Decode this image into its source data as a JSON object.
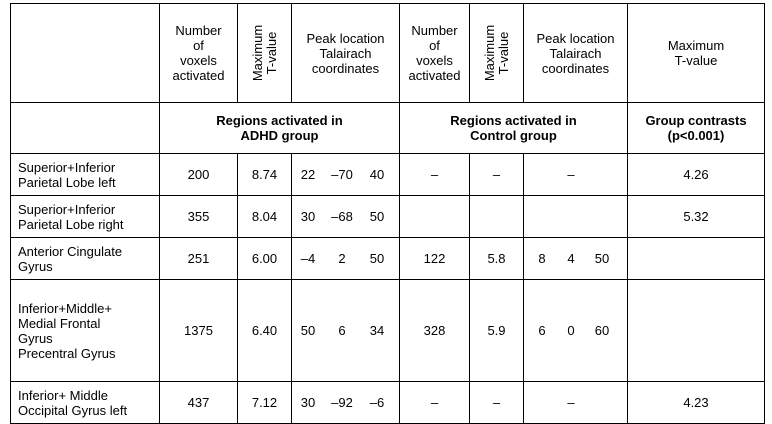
{
  "headers": {
    "num_voxels": "Number\nof\nvoxels\nactivated",
    "max_t": "Maximum\nT-value",
    "peak": "Peak location\nTalairach\ncoordinates",
    "num_voxels_2": "Number\nof\nvoxels\nactivated",
    "max_t_2": "Maximum\nT-value",
    "peak_2": "Peak location\nTalairach\ncoordinates",
    "max_t_contrast": "Maximum\nT-value"
  },
  "groups": {
    "adhd": "Regions activated in\nADHD group",
    "control": "Regions activated in\nControl group",
    "contrast": "Group contrasts\n(p<0.001)"
  },
  "rows": [
    {
      "region": "Superior+Inferior\nParietal Lobe left",
      "adhd_voxels": "200",
      "adhd_t": "8.74",
      "adhd_x": "22",
      "adhd_y": "–70",
      "adhd_z": "40",
      "ctrl_voxels": "–",
      "ctrl_t": "–",
      "ctrl_x": "",
      "ctrl_y": "–",
      "ctrl_z": "",
      "contrast_t": "4.26"
    },
    {
      "region": "Superior+Inferior\nParietal Lobe right",
      "adhd_voxels": "355",
      "adhd_t": "8.04",
      "adhd_x": "30",
      "adhd_y": "–68",
      "adhd_z": "50",
      "ctrl_voxels": "",
      "ctrl_t": "",
      "ctrl_x": "",
      "ctrl_y": "",
      "ctrl_z": "",
      "contrast_t": "5.32"
    },
    {
      "region": "Anterior Cingulate\nGyrus",
      "adhd_voxels": "251",
      "adhd_t": "6.00",
      "adhd_x": "–4",
      "adhd_y": "2",
      "adhd_z": "50",
      "ctrl_voxels": "122",
      "ctrl_t": "5.8",
      "ctrl_x": "8",
      "ctrl_y": "4",
      "ctrl_z": "50",
      "contrast_t": ""
    },
    {
      "region": "Inferior+Middle+\nMedial Frontal\nGyrus\nPrecentral Gyrus",
      "adhd_voxels": "1375",
      "adhd_t": "6.40",
      "adhd_x": "50",
      "adhd_y": "6",
      "adhd_z": "34",
      "ctrl_voxels": "328",
      "ctrl_t": "5.9",
      "ctrl_x": "6",
      "ctrl_y": "0",
      "ctrl_z": "60",
      "contrast_t": ""
    },
    {
      "region": "Inferior+ Middle\nOccipital Gyrus left",
      "adhd_voxels": "437",
      "adhd_t": "7.12",
      "adhd_x": "30",
      "adhd_y": "–92",
      "adhd_z": "–6",
      "ctrl_voxels": "–",
      "ctrl_t": "–",
      "ctrl_x": "",
      "ctrl_y": "–",
      "ctrl_z": "",
      "contrast_t": "4.23"
    }
  ]
}
